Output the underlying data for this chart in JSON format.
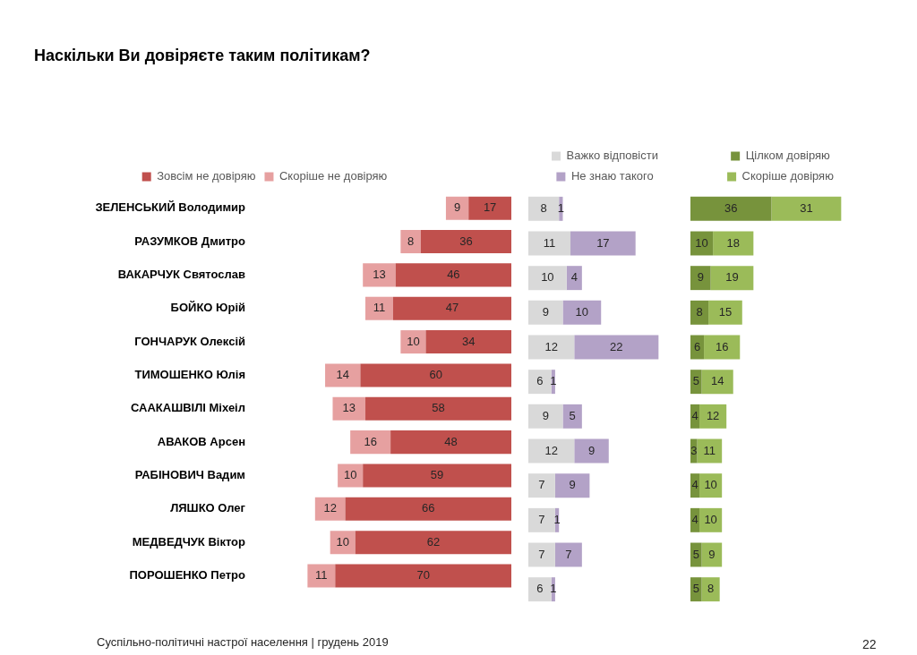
{
  "chart_data": [
    {
      "type": "bar",
      "title": "Наскільки Ви довіряєте таким політикам?",
      "annotations": [
        "Суспільно-політичні настрої населення | грудень 2019",
        "22"
      ],
      "orientation": "horizontal",
      "stacked": true,
      "legend": "top",
      "tick_labels": "y",
      "grid": false,
      "data_labels": true,
      "categories": [
        "ЗЕЛЕНСЬКИЙ Володимир",
        "РАЗУМКОВ Дмитро",
        "ВАКАРЧУК Святослав",
        "БОЙКО Юрій",
        "ГОНЧАРУК Олексій",
        "ТИМОШЕНКО Юлія",
        "СААКАШВІЛІ Міхеіл",
        "АВАКОВ Арсен",
        "РАБІНОВИЧ Вадим",
        "ЛЯШКО Олег",
        "МЕДВЕДЧУК Віктор",
        "ПОРОШЕНКО Петро"
      ],
      "series": [
        {
          "name": "Зовсім не довіряю",
          "color": "#c0504d",
          "values": [
            17,
            36,
            46,
            47,
            34,
            60,
            58,
            48,
            59,
            66,
            62,
            70
          ]
        },
        {
          "name": "Скоріше не довіряю",
          "color": "#e6a0a0",
          "values": [
            9,
            8,
            13,
            11,
            10,
            14,
            13,
            16,
            10,
            12,
            10,
            11
          ]
        }
      ]
    },
    {
      "type": "bar",
      "orientation": "horizontal",
      "stacked": true,
      "legend": "top",
      "tick_labels": false,
      "grid": false,
      "data_labels": true,
      "categories": [
        null,
        null,
        null,
        null,
        null,
        null,
        null,
        null,
        null,
        null,
        null,
        null
      ],
      "series": [
        {
          "name": "Важко відповісти",
          "color": "#d9d9d9",
          "values": [
            8,
            11,
            10,
            9,
            12,
            6,
            9,
            12,
            7,
            7,
            7,
            6
          ]
        },
        {
          "name": "Не знаю такого",
          "color": "#b3a2c7",
          "values": [
            1,
            17,
            4,
            10,
            22,
            1,
            5,
            9,
            9,
            1,
            7,
            1
          ]
        }
      ]
    },
    {
      "type": "bar",
      "orientation": "horizontal",
      "stacked": true,
      "legend": "top",
      "tick_labels": false,
      "grid": false,
      "data_labels": true,
      "categories": [
        null,
        null,
        null,
        null,
        null,
        null,
        null,
        null,
        null,
        null,
        null,
        null
      ],
      "series": [
        {
          "name": "Цілком довіряю",
          "color": "#77933c",
          "values": [
            36,
            10,
            9,
            8,
            6,
            5,
            4,
            3,
            4,
            4,
            5,
            5
          ]
        },
        {
          "name": "Скоріше довіряю",
          "color": "#9bbb59",
          "values": [
            31,
            18,
            19,
            15,
            16,
            14,
            12,
            11,
            10,
            10,
            9,
            8
          ]
        }
      ]
    }
  ]
}
